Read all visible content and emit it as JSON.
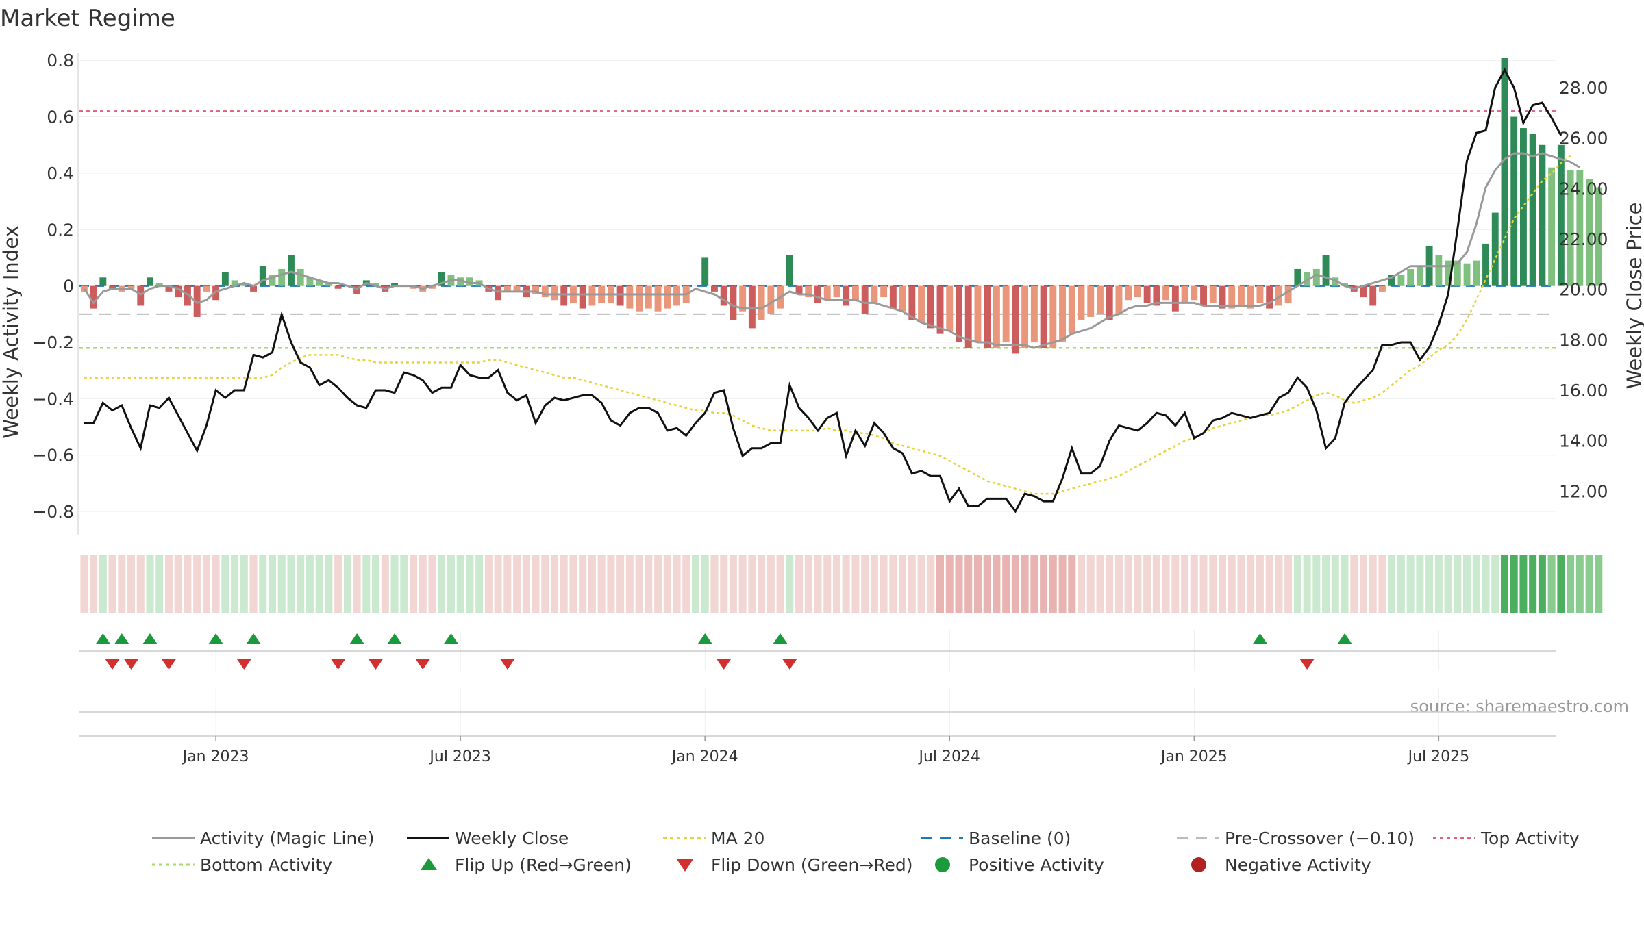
{
  "chart_data": {
    "type": "bar",
    "title": "Market Regime",
    "source": "source: sharemaestro.com",
    "y_left_label": "Weekly Activity Index",
    "y_right_label": "Weekly Close Price",
    "y_left_range": [
      -0.88,
      0.82
    ],
    "y_right_range": [
      10.3,
      29.3
    ],
    "y_left_ticks": [
      "0.8",
      "0.6",
      "0.4",
      "0.2",
      "0",
      "−0.2",
      "−0.4",
      "−0.6",
      "−0.8"
    ],
    "y_left_tick_values": [
      0.8,
      0.6,
      0.4,
      0.2,
      0,
      -0.2,
      -0.4,
      -0.6,
      -0.8
    ],
    "y_right_ticks": [
      "28.00",
      "26.00",
      "24.00",
      "22.00",
      "20.00",
      "18.00",
      "16.00",
      "14.00",
      "12.00"
    ],
    "y_right_tick_values": [
      28,
      26,
      24,
      22,
      20,
      18,
      16,
      14,
      12
    ],
    "x_ticks": [
      "Jan 2023",
      "Jul 2023",
      "Jan 2024",
      "Jul 2024",
      "Jan 2025",
      "Jul 2025"
    ],
    "x_tick_weeks": [
      14,
      40,
      66,
      92,
      118,
      144
    ],
    "reference_lines": {
      "baseline": 0,
      "pre_crossover": -0.1,
      "top_activity": 0.62,
      "bottom_activity": -0.22
    },
    "weeks": 157,
    "activity": [
      -0.02,
      -0.08,
      0.03,
      -0.01,
      -0.02,
      -0.01,
      -0.07,
      0.03,
      0.01,
      -0.02,
      -0.04,
      -0.07,
      -0.11,
      -0.02,
      -0.05,
      0.05,
      0.02,
      0.01,
      -0.02,
      0.07,
      0.04,
      0.06,
      0.11,
      0.06,
      0.03,
      0.02,
      0.01,
      -0.01,
      0.0,
      -0.03,
      0.02,
      0.01,
      -0.02,
      0.01,
      0.0,
      -0.01,
      -0.02,
      -0.01,
      0.05,
      0.04,
      0.03,
      0.03,
      0.02,
      -0.02,
      -0.05,
      -0.02,
      -0.02,
      -0.04,
      -0.03,
      -0.04,
      -0.05,
      -0.07,
      -0.06,
      -0.08,
      -0.07,
      -0.06,
      -0.06,
      -0.07,
      -0.08,
      -0.09,
      -0.08,
      -0.09,
      -0.08,
      -0.07,
      -0.06,
      0.0,
      0.1,
      -0.02,
      -0.07,
      -0.12,
      -0.09,
      -0.15,
      -0.12,
      -0.1,
      -0.08,
      0.11,
      -0.03,
      -0.04,
      -0.06,
      -0.05,
      -0.04,
      -0.07,
      -0.05,
      -0.1,
      -0.06,
      -0.04,
      -0.08,
      -0.09,
      -0.12,
      -0.13,
      -0.15,
      -0.17,
      -0.16,
      -0.2,
      -0.22,
      -0.2,
      -0.22,
      -0.22,
      -0.2,
      -0.24,
      -0.22,
      -0.2,
      -0.22,
      -0.22,
      -0.2,
      -0.17,
      -0.12,
      -0.11,
      -0.1,
      -0.12,
      -0.1,
      -0.05,
      -0.04,
      -0.06,
      -0.07,
      -0.05,
      -0.09,
      -0.06,
      -0.05,
      -0.07,
      -0.06,
      -0.08,
      -0.08,
      -0.07,
      -0.08,
      -0.06,
      -0.08,
      -0.07,
      -0.06,
      0.06,
      0.05,
      0.06,
      0.11,
      0.03,
      0.01,
      -0.02,
      -0.04,
      -0.07,
      -0.02,
      0.04,
      0.04,
      0.06,
      0.07,
      0.14,
      0.11,
      0.09,
      0.09,
      0.08,
      0.09,
      0.15,
      0.26,
      0.81,
      0.6,
      0.56,
      0.54,
      0.5,
      0.42,
      0.5,
      0.41,
      0.41,
      0.38,
      0.35
    ],
    "magic_line": [
      -0.01,
      -0.06,
      -0.02,
      -0.01,
      -0.01,
      -0.01,
      -0.03,
      -0.01,
      0.0,
      0.0,
      -0.01,
      -0.03,
      -0.06,
      -0.05,
      -0.02,
      -0.01,
      0.0,
      0.01,
      0.0,
      0.02,
      0.03,
      0.04,
      0.05,
      0.04,
      0.03,
      0.02,
      0.01,
      0.01,
      0.0,
      -0.01,
      0.01,
      0.0,
      -0.01,
      0.0,
      0.0,
      0.0,
      -0.01,
      0.0,
      0.01,
      0.02,
      0.02,
      0.01,
      0.01,
      -0.01,
      -0.02,
      -0.02,
      -0.02,
      -0.02,
      -0.02,
      -0.03,
      -0.03,
      -0.03,
      -0.03,
      -0.03,
      -0.03,
      -0.03,
      -0.03,
      -0.03,
      -0.03,
      -0.03,
      -0.03,
      -0.03,
      -0.03,
      -0.03,
      -0.03,
      -0.01,
      -0.02,
      -0.03,
      -0.05,
      -0.07,
      -0.08,
      -0.08,
      -0.08,
      -0.06,
      -0.04,
      -0.02,
      -0.03,
      -0.03,
      -0.04,
      -0.05,
      -0.05,
      -0.05,
      -0.05,
      -0.06,
      -0.06,
      -0.07,
      -0.08,
      -0.09,
      -0.11,
      -0.13,
      -0.14,
      -0.15,
      -0.16,
      -0.18,
      -0.19,
      -0.2,
      -0.2,
      -0.21,
      -0.21,
      -0.21,
      -0.21,
      -0.22,
      -0.21,
      -0.2,
      -0.19,
      -0.17,
      -0.16,
      -0.15,
      -0.13,
      -0.11,
      -0.1,
      -0.08,
      -0.07,
      -0.07,
      -0.06,
      -0.06,
      -0.06,
      -0.06,
      -0.06,
      -0.07,
      -0.07,
      -0.07,
      -0.07,
      -0.07,
      -0.07,
      -0.07,
      -0.06,
      -0.04,
      -0.02,
      0.0,
      0.02,
      0.04,
      0.03,
      0.02,
      0.0,
      -0.01,
      0.0,
      0.01,
      0.02,
      0.03,
      0.05,
      0.07,
      0.07,
      0.07,
      0.07,
      0.07,
      0.08,
      0.12,
      0.22,
      0.35,
      0.41,
      0.45,
      0.47,
      0.47,
      0.46,
      0.47,
      0.46,
      0.45,
      0.44,
      0.42
    ],
    "weekly_close": [
      14.7,
      14.7,
      15.5,
      15.2,
      15.4,
      14.5,
      13.7,
      15.4,
      15.3,
      15.7,
      15.0,
      14.3,
      13.6,
      14.6,
      16.0,
      15.7,
      16.0,
      16.0,
      17.4,
      17.3,
      17.5,
      19.0,
      17.9,
      17.1,
      16.9,
      16.2,
      16.4,
      16.1,
      15.7,
      15.4,
      15.3,
      16.0,
      16.0,
      15.9,
      16.7,
      16.6,
      16.4,
      15.9,
      16.1,
      16.1,
      17.0,
      16.6,
      16.5,
      16.5,
      16.8,
      15.9,
      15.6,
      15.8,
      14.7,
      15.4,
      15.7,
      15.6,
      15.7,
      15.8,
      15.8,
      15.5,
      14.8,
      14.6,
      15.1,
      15.3,
      15.3,
      15.1,
      14.4,
      14.5,
      14.2,
      14.7,
      15.1,
      15.9,
      16.0,
      14.5,
      13.4,
      13.7,
      13.7,
      13.9,
      13.9,
      16.2,
      15.3,
      14.9,
      14.4,
      14.9,
      15.1,
      13.4,
      14.4,
      13.8,
      14.7,
      14.3,
      13.7,
      13.5,
      12.7,
      12.8,
      12.6,
      12.6,
      11.6,
      12.1,
      11.4,
      11.4,
      11.7,
      11.7,
      11.7,
      11.2,
      11.9,
      11.8,
      11.6,
      11.6,
      12.5,
      13.7,
      12.7,
      12.7,
      13.0,
      14.0,
      14.6,
      14.5,
      14.4,
      14.7,
      15.1,
      15.0,
      14.6,
      15.1,
      14.1,
      14.3,
      14.8,
      14.9,
      15.1,
      15.0,
      14.9,
      15.0,
      15.1,
      15.7,
      15.9,
      16.5,
      16.1,
      15.2,
      13.7,
      14.1,
      15.5,
      16.0,
      16.4,
      16.8,
      17.8,
      17.8,
      17.9,
      17.9,
      17.2,
      17.7,
      18.6,
      19.8,
      22.4,
      25.1,
      26.2,
      26.3,
      28.0,
      28.7,
      28.0,
      26.6,
      27.3,
      27.4,
      26.8,
      26.1
    ],
    "ma20": [
      16.5,
      16.5,
      16.5,
      16.5,
      16.5,
      16.5,
      16.5,
      16.5,
      16.5,
      16.5,
      16.5,
      16.5,
      16.5,
      16.5,
      16.5,
      16.5,
      16.5,
      16.5,
      16.5,
      16.5,
      16.6,
      16.9,
      17.1,
      17.3,
      17.4,
      17.4,
      17.4,
      17.4,
      17.3,
      17.2,
      17.2,
      17.1,
      17.1,
      17.1,
      17.1,
      17.1,
      17.1,
      17.1,
      17.1,
      17.1,
      17.1,
      17.1,
      17.1,
      17.2,
      17.2,
      17.1,
      17.0,
      16.9,
      16.8,
      16.7,
      16.6,
      16.5,
      16.5,
      16.4,
      16.3,
      16.2,
      16.1,
      16.0,
      15.9,
      15.8,
      15.7,
      15.6,
      15.5,
      15.4,
      15.3,
      15.2,
      15.2,
      15.1,
      15.1,
      15.0,
      14.8,
      14.6,
      14.5,
      14.4,
      14.4,
      14.4,
      14.4,
      14.4,
      14.4,
      14.5,
      14.4,
      14.4,
      14.3,
      14.3,
      14.2,
      14.1,
      13.9,
      13.8,
      13.7,
      13.6,
      13.5,
      13.4,
      13.2,
      13.0,
      12.8,
      12.6,
      12.4,
      12.3,
      12.2,
      12.1,
      12.0,
      11.9,
      11.9,
      11.9,
      12.0,
      12.1,
      12.2,
      12.3,
      12.4,
      12.5,
      12.6,
      12.8,
      13.0,
      13.2,
      13.4,
      13.6,
      13.8,
      14.0,
      14.1,
      14.3,
      14.5,
      14.6,
      14.7,
      14.8,
      14.9,
      15.0,
      15.0,
      15.1,
      15.2,
      15.4,
      15.6,
      15.8,
      15.9,
      15.8,
      15.6,
      15.5,
      15.6,
      15.7,
      15.9,
      16.2,
      16.5,
      16.8,
      17.0,
      17.3,
      17.6,
      17.8,
      18.2,
      18.8,
      19.6,
      20.4,
      21.2,
      22.0,
      22.8,
      23.3,
      23.8,
      24.3,
      24.6,
      25.0,
      25.3
    ],
    "flip_up_weeks": [
      2,
      4,
      7,
      14,
      18,
      29,
      33,
      39,
      66,
      74,
      125,
      134
    ],
    "flip_down_weeks": [
      3,
      5,
      9,
      17,
      27,
      31,
      36,
      45,
      68,
      75,
      130
    ],
    "colors": {
      "bar_green_strong": "#2e8b57",
      "bar_green_light": "#7fc07f",
      "bar_red_strong": "#cd5c5c",
      "bar_red_light": "#e9967a",
      "magic_line": "#999999",
      "weekly_close": "#111111",
      "ma20": "#e6d23a",
      "baseline": "#1f77b4",
      "pre_crossover": "#bbbbbb",
      "top_activity": "#e0607e",
      "bottom_activity": "#a6d96a",
      "flip_up": "#1a9a3c",
      "flip_down": "#d32f2f",
      "positive_activity": "#1a9a3c",
      "negative_activity": "#b22222"
    },
    "legend": [
      {
        "label": "Activity (Magic Line)",
        "marker": "line",
        "color": "#999999"
      },
      {
        "label": "Weekly Close",
        "marker": "line",
        "color": "#111111"
      },
      {
        "label": "MA 20",
        "marker": "dotted",
        "color": "#e6d23a"
      },
      {
        "label": "Baseline (0)",
        "marker": "dashed",
        "color": "#1f77b4"
      },
      {
        "label": "Pre-Crossover (−0.10)",
        "marker": "dashed",
        "color": "#bbbbbb"
      },
      {
        "label": "Top Activity",
        "marker": "dotted",
        "color": "#e0607e"
      },
      {
        "label": "Bottom Activity",
        "marker": "dotted",
        "color": "#a6d96a"
      },
      {
        "label": "Flip Up (Red→Green)",
        "marker": "triangle-up",
        "color": "#1a9a3c"
      },
      {
        "label": "Flip Down (Green→Red)",
        "marker": "triangle-down",
        "color": "#d32f2f"
      },
      {
        "label": "Positive Activity",
        "marker": "circle",
        "color": "#1a9a3c"
      },
      {
        "label": "Negative Activity",
        "marker": "circle",
        "color": "#b22222"
      }
    ]
  }
}
